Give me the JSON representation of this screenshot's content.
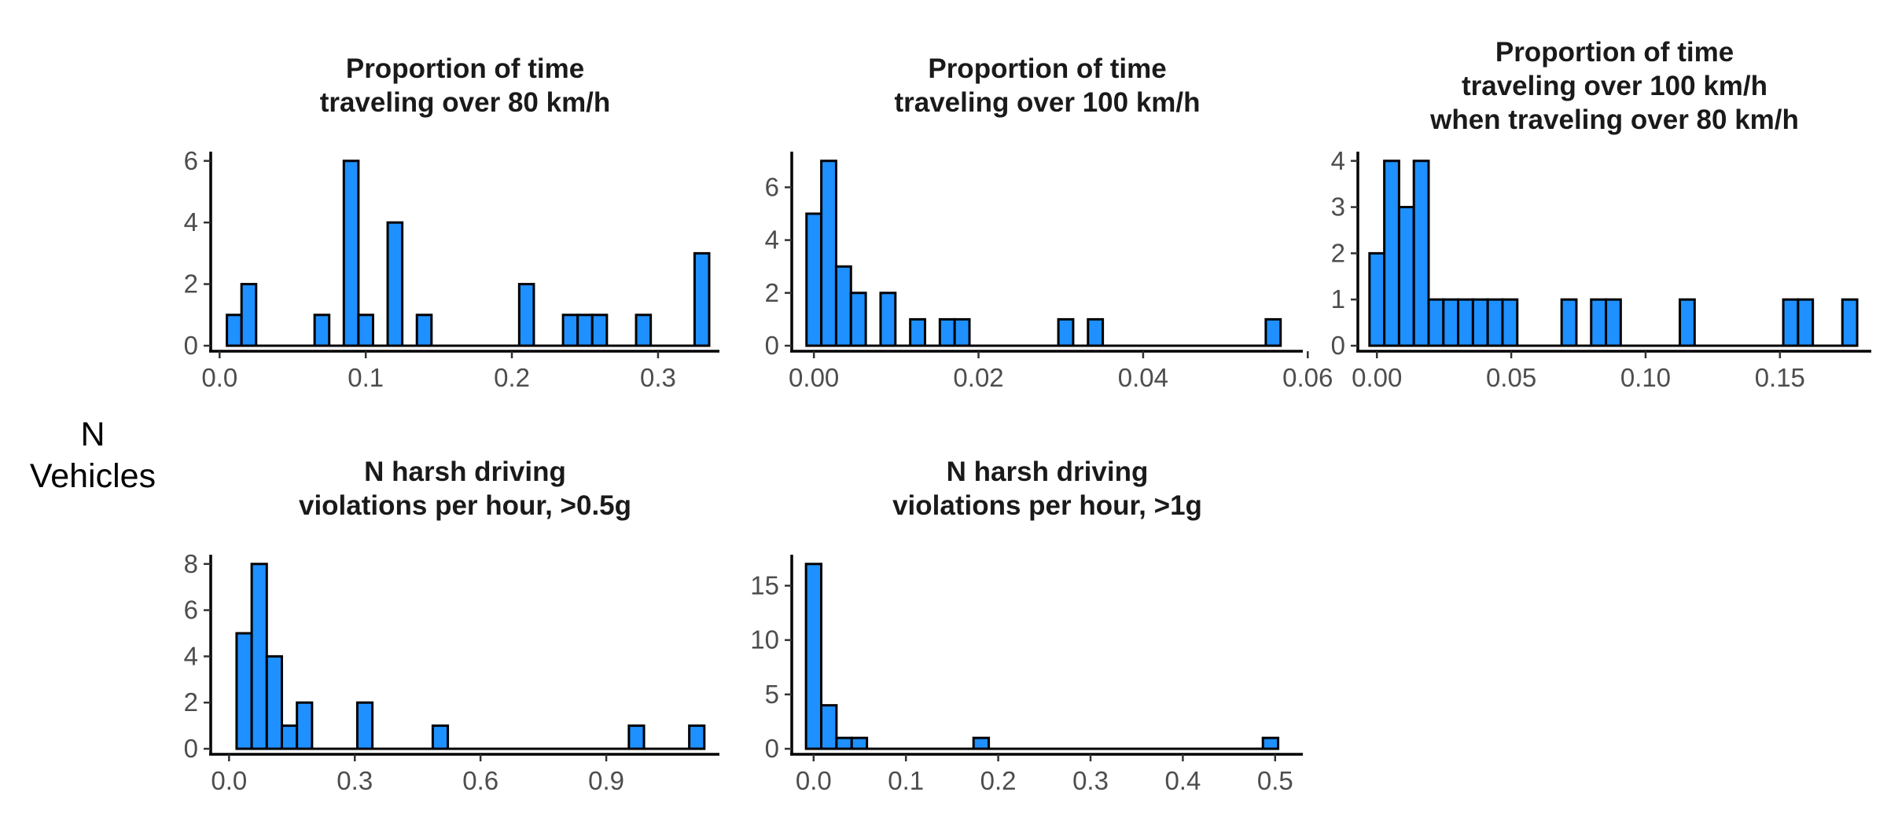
{
  "figure": {
    "y_axis_title_lines": [
      "N",
      "Vehicles"
    ],
    "bar_fill": "#1E90FF",
    "bar_stroke": "#000000"
  },
  "chart_data": [
    {
      "type": "bar",
      "title_lines": [
        "Proportion of time",
        "traveling over 80 km/h"
      ],
      "xlabel": "",
      "ylabel": "N Vehicles",
      "bin_width": 0.01,
      "bins": [
        {
          "x": 0.01,
          "count": 1
        },
        {
          "x": 0.02,
          "count": 2
        },
        {
          "x": 0.03,
          "count": 0
        },
        {
          "x": 0.04,
          "count": 0
        },
        {
          "x": 0.05,
          "count": 0
        },
        {
          "x": 0.06,
          "count": 0
        },
        {
          "x": 0.07,
          "count": 1
        },
        {
          "x": 0.08,
          "count": 0
        },
        {
          "x": 0.09,
          "count": 6
        },
        {
          "x": 0.1,
          "count": 1
        },
        {
          "x": 0.11,
          "count": 0
        },
        {
          "x": 0.12,
          "count": 4
        },
        {
          "x": 0.13,
          "count": 0
        },
        {
          "x": 0.14,
          "count": 1
        },
        {
          "x": 0.15,
          "count": 0
        },
        {
          "x": 0.16,
          "count": 0
        },
        {
          "x": 0.17,
          "count": 0
        },
        {
          "x": 0.18,
          "count": 0
        },
        {
          "x": 0.19,
          "count": 0
        },
        {
          "x": 0.2,
          "count": 0
        },
        {
          "x": 0.21,
          "count": 2
        },
        {
          "x": 0.22,
          "count": 0
        },
        {
          "x": 0.23,
          "count": 0
        },
        {
          "x": 0.24,
          "count": 1
        },
        {
          "x": 0.25,
          "count": 1
        },
        {
          "x": 0.26,
          "count": 1
        },
        {
          "x": 0.27,
          "count": 0
        },
        {
          "x": 0.28,
          "count": 0
        },
        {
          "x": 0.29,
          "count": 1
        },
        {
          "x": 0.3,
          "count": 0
        },
        {
          "x": 0.31,
          "count": 0
        },
        {
          "x": 0.32,
          "count": 0
        },
        {
          "x": 0.33,
          "count": 3
        }
      ],
      "xlim": [
        -0.005,
        0.342
      ],
      "ylim": [
        0,
        6.3
      ],
      "xticks": [
        0,
        0.1,
        0.2,
        0.3
      ],
      "xtick_labels": [
        "0.0",
        "0.1",
        "0.2",
        "0.3"
      ],
      "yticks": [
        0,
        2,
        4,
        6
      ],
      "ytick_labels": [
        "0",
        "2",
        "4",
        "6"
      ]
    },
    {
      "type": "bar",
      "title_lines": [
        "Proportion of time",
        "traveling over 100 km/h"
      ],
      "xlabel": "",
      "ylabel": "N Vehicles",
      "bin_width": 0.0018,
      "bins": [
        {
          "x": 0.0,
          "count": 5
        },
        {
          "x": 0.0018,
          "count": 7
        },
        {
          "x": 0.0036,
          "count": 3
        },
        {
          "x": 0.0054,
          "count": 2
        },
        {
          "x": 0.0072,
          "count": 0
        },
        {
          "x": 0.009,
          "count": 2
        },
        {
          "x": 0.0108,
          "count": 0
        },
        {
          "x": 0.0126,
          "count": 1
        },
        {
          "x": 0.0144,
          "count": 0
        },
        {
          "x": 0.0162,
          "count": 1
        },
        {
          "x": 0.018,
          "count": 1
        },
        {
          "x": 0.0198,
          "count": 0
        },
        {
          "x": 0.0216,
          "count": 0
        },
        {
          "x": 0.0234,
          "count": 0
        },
        {
          "x": 0.0252,
          "count": 0
        },
        {
          "x": 0.027,
          "count": 0
        },
        {
          "x": 0.0288,
          "count": 0
        },
        {
          "x": 0.0306,
          "count": 1
        },
        {
          "x": 0.0324,
          "count": 0
        },
        {
          "x": 0.0342,
          "count": 1
        },
        {
          "x": 0.036,
          "count": 0
        },
        {
          "x": 0.0378,
          "count": 0
        },
        {
          "x": 0.0396,
          "count": 0
        },
        {
          "x": 0.0414,
          "count": 0
        },
        {
          "x": 0.0432,
          "count": 0
        },
        {
          "x": 0.045,
          "count": 0
        },
        {
          "x": 0.0468,
          "count": 0
        },
        {
          "x": 0.0486,
          "count": 0
        },
        {
          "x": 0.0504,
          "count": 0
        },
        {
          "x": 0.0522,
          "count": 0
        },
        {
          "x": 0.054,
          "count": 0
        },
        {
          "x": 0.0558,
          "count": 1
        }
      ],
      "xlim": [
        -0.0025,
        0.0594
      ],
      "ylim": [
        0,
        7.35
      ],
      "xticks": [
        0,
        0.02,
        0.04,
        0.06
      ],
      "xtick_labels": [
        "0.00",
        "0.02",
        "0.04",
        "0.06"
      ],
      "yticks": [
        0,
        2,
        4,
        6
      ],
      "ytick_labels": [
        "0",
        "2",
        "4",
        "6"
      ]
    },
    {
      "type": "bar",
      "title_lines": [
        "Proportion of time",
        "traveling over 100 km/h",
        "when traveling over 80 km/h"
      ],
      "xlabel": "",
      "ylabel": "N Vehicles",
      "bin_width": 0.0055,
      "bins": [
        {
          "x": 0.0,
          "count": 2
        },
        {
          "x": 0.0055,
          "count": 4
        },
        {
          "x": 0.011,
          "count": 3
        },
        {
          "x": 0.0165,
          "count": 4
        },
        {
          "x": 0.022,
          "count": 1
        },
        {
          "x": 0.0275,
          "count": 1
        },
        {
          "x": 0.033,
          "count": 1
        },
        {
          "x": 0.0385,
          "count": 1
        },
        {
          "x": 0.044,
          "count": 1
        },
        {
          "x": 0.0495,
          "count": 1
        },
        {
          "x": 0.055,
          "count": 0
        },
        {
          "x": 0.0605,
          "count": 0
        },
        {
          "x": 0.066,
          "count": 0
        },
        {
          "x": 0.0715,
          "count": 1
        },
        {
          "x": 0.077,
          "count": 0
        },
        {
          "x": 0.0825,
          "count": 1
        },
        {
          "x": 0.088,
          "count": 1
        },
        {
          "x": 0.0935,
          "count": 0
        },
        {
          "x": 0.099,
          "count": 0
        },
        {
          "x": 0.1045,
          "count": 0
        },
        {
          "x": 0.11,
          "count": 0
        },
        {
          "x": 0.1155,
          "count": 1
        },
        {
          "x": 0.121,
          "count": 0
        },
        {
          "x": 0.1265,
          "count": 0
        },
        {
          "x": 0.132,
          "count": 0
        },
        {
          "x": 0.1375,
          "count": 0
        },
        {
          "x": 0.143,
          "count": 0
        },
        {
          "x": 0.1485,
          "count": 0
        },
        {
          "x": 0.154,
          "count": 1
        },
        {
          "x": 0.1595,
          "count": 1
        },
        {
          "x": 0.165,
          "count": 0
        },
        {
          "x": 0.1705,
          "count": 0
        },
        {
          "x": 0.176,
          "count": 1
        }
      ],
      "xlim": [
        -0.0065,
        0.184
      ],
      "ylim": [
        0,
        4.2
      ],
      "xticks": [
        0,
        0.05,
        0.1,
        0.15
      ],
      "xtick_labels": [
        "0.00",
        "0.05",
        "0.10",
        "0.15"
      ],
      "yticks": [
        0,
        1,
        2,
        3,
        4
      ],
      "ytick_labels": [
        "0",
        "1",
        "2",
        "3",
        "4"
      ]
    },
    {
      "type": "bar",
      "title_lines": [
        "N harsh driving",
        "violations per hour, >0.5g"
      ],
      "xlabel": "",
      "ylabel": "N Vehicles",
      "bin_width": 0.036,
      "bins": [
        {
          "x": 0.036,
          "count": 5
        },
        {
          "x": 0.072,
          "count": 8
        },
        {
          "x": 0.108,
          "count": 4
        },
        {
          "x": 0.144,
          "count": 1
        },
        {
          "x": 0.18,
          "count": 2
        },
        {
          "x": 0.216,
          "count": 0
        },
        {
          "x": 0.252,
          "count": 0
        },
        {
          "x": 0.288,
          "count": 0
        },
        {
          "x": 0.324,
          "count": 2
        },
        {
          "x": 0.36,
          "count": 0
        },
        {
          "x": 0.396,
          "count": 0
        },
        {
          "x": 0.432,
          "count": 0
        },
        {
          "x": 0.468,
          "count": 0
        },
        {
          "x": 0.504,
          "count": 1
        },
        {
          "x": 0.54,
          "count": 0
        },
        {
          "x": 0.576,
          "count": 0
        },
        {
          "x": 0.612,
          "count": 0
        },
        {
          "x": 0.648,
          "count": 0
        },
        {
          "x": 0.684,
          "count": 0
        },
        {
          "x": 0.72,
          "count": 0
        },
        {
          "x": 0.756,
          "count": 0
        },
        {
          "x": 0.792,
          "count": 0
        },
        {
          "x": 0.828,
          "count": 0
        },
        {
          "x": 0.864,
          "count": 0
        },
        {
          "x": 0.9,
          "count": 0
        },
        {
          "x": 0.936,
          "count": 0
        },
        {
          "x": 0.972,
          "count": 1
        },
        {
          "x": 1.008,
          "count": 0
        },
        {
          "x": 1.044,
          "count": 0
        },
        {
          "x": 1.08,
          "count": 0
        },
        {
          "x": 1.116,
          "count": 1
        }
      ],
      "xlim": [
        -0.04,
        1.17
      ],
      "ylim": [
        0,
        8.4
      ],
      "xticks": [
        0,
        0.3,
        0.6,
        0.9
      ],
      "xtick_labels": [
        "0.0",
        "0.3",
        "0.6",
        "0.9"
      ],
      "yticks": [
        0,
        2,
        4,
        6,
        8
      ],
      "ytick_labels": [
        "0",
        "2",
        "4",
        "6",
        "8"
      ]
    },
    {
      "type": "bar",
      "title_lines": [
        "N harsh driving",
        "violations per hour, >1g"
      ],
      "xlabel": "",
      "ylabel": "N Vehicles",
      "bin_width": 0.0165,
      "bins": [
        {
          "x": 0.0,
          "count": 17
        },
        {
          "x": 0.0165,
          "count": 4
        },
        {
          "x": 0.033,
          "count": 1
        },
        {
          "x": 0.0495,
          "count": 1
        },
        {
          "x": 0.066,
          "count": 0
        },
        {
          "x": 0.0825,
          "count": 0
        },
        {
          "x": 0.099,
          "count": 0
        },
        {
          "x": 0.1155,
          "count": 0
        },
        {
          "x": 0.132,
          "count": 0
        },
        {
          "x": 0.1485,
          "count": 0
        },
        {
          "x": 0.165,
          "count": 0
        },
        {
          "x": 0.1815,
          "count": 1
        },
        {
          "x": 0.198,
          "count": 0
        },
        {
          "x": 0.2145,
          "count": 0
        },
        {
          "x": 0.231,
          "count": 0
        },
        {
          "x": 0.2475,
          "count": 0
        },
        {
          "x": 0.264,
          "count": 0
        },
        {
          "x": 0.2805,
          "count": 0
        },
        {
          "x": 0.297,
          "count": 0
        },
        {
          "x": 0.3135,
          "count": 0
        },
        {
          "x": 0.33,
          "count": 0
        },
        {
          "x": 0.3465,
          "count": 0
        },
        {
          "x": 0.363,
          "count": 0
        },
        {
          "x": 0.3795,
          "count": 0
        },
        {
          "x": 0.396,
          "count": 0
        },
        {
          "x": 0.4125,
          "count": 0
        },
        {
          "x": 0.429,
          "count": 0
        },
        {
          "x": 0.4455,
          "count": 0
        },
        {
          "x": 0.462,
          "count": 0
        },
        {
          "x": 0.4785,
          "count": 0
        },
        {
          "x": 0.495,
          "count": 1
        }
      ],
      "xlim": [
        -0.022,
        0.53
      ],
      "ylim": [
        0,
        17.85
      ],
      "xticks": [
        0,
        0.1,
        0.2,
        0.3,
        0.4,
        0.5
      ],
      "xtick_labels": [
        "0.0",
        "0.1",
        "0.2",
        "0.3",
        "0.4",
        "0.5"
      ],
      "yticks": [
        0,
        5,
        10,
        15
      ],
      "ytick_labels": [
        "0",
        "5",
        "10",
        "15"
      ]
    }
  ]
}
